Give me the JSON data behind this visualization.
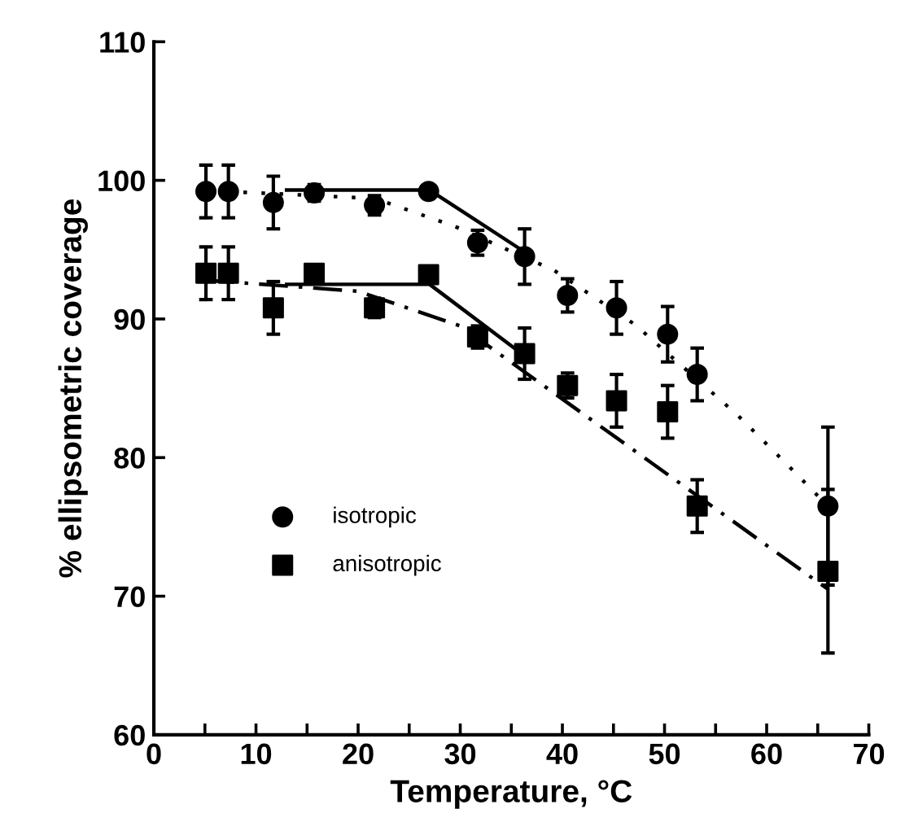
{
  "chart_data": {
    "type": "scatter",
    "xlabel": "Temperature, °C",
    "ylabel": "% ellipsometric coverage",
    "xlim": [
      0,
      70
    ],
    "ylim": [
      60,
      110
    ],
    "xticks": [
      0,
      {
        "value": 5,
        "label": null
      },
      10,
      {
        "value": 15,
        "label": null
      },
      20,
      {
        "value": 25,
        "label": null
      },
      30,
      {
        "value": 35,
        "label": null
      },
      40,
      {
        "value": 45,
        "label": null
      },
      50,
      {
        "value": 55,
        "label": null
      },
      60,
      {
        "value": 65,
        "label": null
      },
      70
    ],
    "yticks": [
      60,
      70,
      80,
      90,
      100,
      110
    ],
    "grid": false,
    "legend": "bottom left",
    "series": [
      {
        "name": "isotropic",
        "marker": "circle",
        "color": "#000000",
        "x": [
          5.1,
          7.3,
          11.7,
          15.7,
          21.6,
          26.9,
          31.7,
          36.3,
          40.5,
          45.3,
          50.3,
          53.2,
          66.0
        ],
        "values": [
          99.2,
          99.2,
          98.4,
          99.1,
          98.2,
          99.2,
          95.5,
          94.5,
          91.7,
          90.8,
          88.9,
          86.0,
          76.5
        ],
        "errors": [
          1.9,
          1.9,
          1.9,
          0.6,
          0.7,
          0.3,
          0.9,
          2.0,
          1.2,
          1.9,
          2.0,
          1.9,
          5.7
        ]
      },
      {
        "name": "anisotropic",
        "marker": "square",
        "color": "#000000",
        "x": [
          5.1,
          7.3,
          11.7,
          15.7,
          21.6,
          26.9,
          31.7,
          36.3,
          40.5,
          45.3,
          50.3,
          53.2,
          66.0
        ],
        "values": [
          93.3,
          93.3,
          90.8,
          93.3,
          90.8,
          93.2,
          88.7,
          87.5,
          85.2,
          84.1,
          83.3,
          76.5,
          71.8
        ],
        "errors": [
          1.9,
          1.9,
          1.9,
          0.5,
          0.7,
          0.4,
          0.8,
          1.85,
          0.9,
          1.9,
          1.9,
          1.9,
          5.9
        ]
      },
      {
        "type": "line",
        "line_style": "solid",
        "color": "#000000",
        "x": [
          13,
          27,
          37
        ],
        "values": [
          99.3,
          99.3,
          94.5
        ]
      },
      {
        "type": "line",
        "line_style": "dotted",
        "color": "#000000",
        "x": [
          7,
          21.6,
          29.4,
          39.2,
          47.1,
          57.1,
          62,
          66
        ],
        "values": [
          99.2,
          98.7,
          96.7,
          93.5,
          89.6,
          83.1,
          79.5,
          76.5
        ]
      },
      {
        "type": "line",
        "line_style": "solid",
        "color": "#000000",
        "x": [
          13,
          27,
          36
        ],
        "values": [
          92.5,
          92.5,
          87.5
        ]
      },
      {
        "type": "line",
        "line_style": "dashed",
        "color": "#000000",
        "x": [
          5,
          20,
          30,
          66
        ],
        "values": [
          92.8,
          92.0,
          89.5,
          70.5
        ]
      }
    ]
  }
}
